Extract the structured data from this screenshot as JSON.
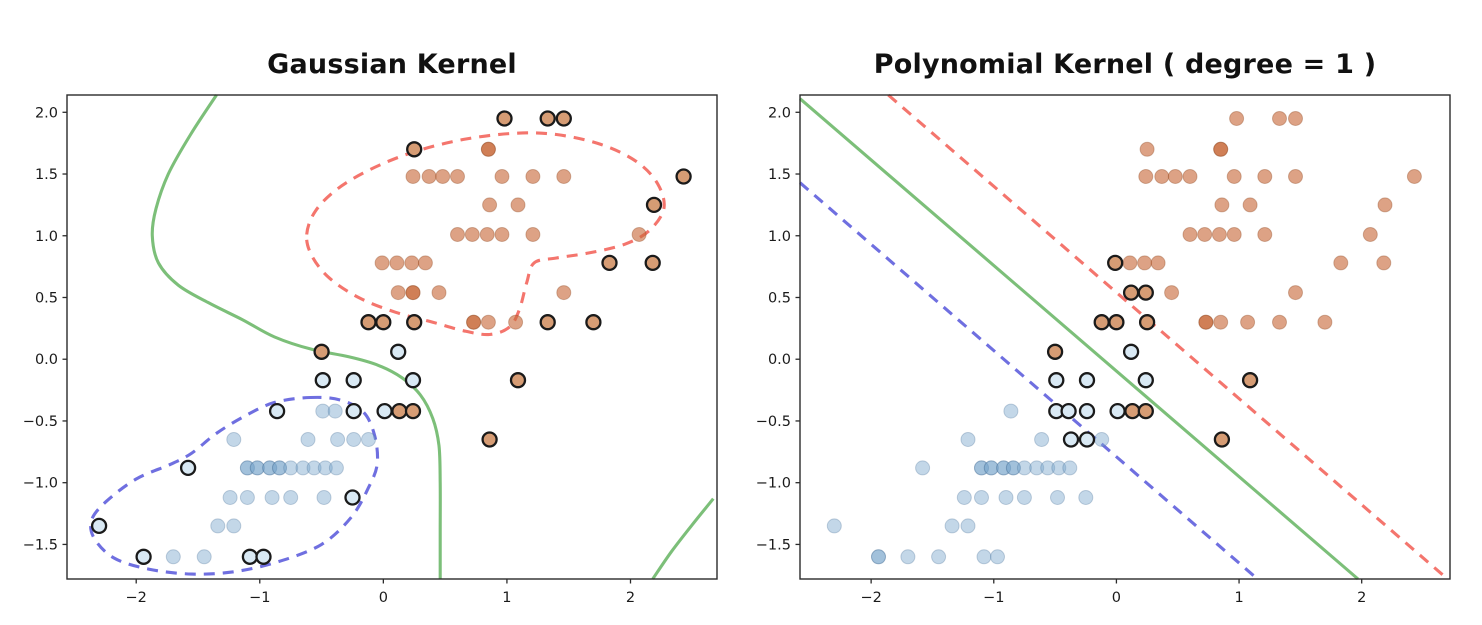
{
  "figure": {
    "background": "#ffffff"
  },
  "colors": {
    "orange_fill": "#c8693a",
    "orange_opacity": 0.62,
    "orange_sv_fill": "#d69c74",
    "blue_fill": "#79a7cb",
    "blue_opacity": 0.45,
    "blue_sv_fill": "#d9e9f4",
    "sv_edge": "#1a1a1a",
    "green_line": "#7cbf79",
    "red_line": "#f4756d",
    "blue_line": "#6f6fe0",
    "spine": "#2b2b2b",
    "tick_text": "#1a1a1a"
  },
  "chart_data": {
    "type": "scatter",
    "description": "SVM decision boundaries: solid green = decision boundary, dashed red/blue = class margin contours, black-ringed points = support vectors",
    "points": {
      "orange": [
        [
          0.98,
          1.95,
          0
        ],
        [
          1.33,
          1.95,
          0
        ],
        [
          1.46,
          1.95,
          0
        ],
        [
          0.25,
          1.7,
          0
        ],
        [
          0.85,
          1.7,
          1
        ],
        [
          0.24,
          1.48,
          0
        ],
        [
          0.37,
          1.48,
          0
        ],
        [
          0.48,
          1.48,
          0
        ],
        [
          0.6,
          1.48,
          0
        ],
        [
          0.96,
          1.48,
          0
        ],
        [
          1.21,
          1.48,
          0
        ],
        [
          1.46,
          1.48,
          0
        ],
        [
          2.43,
          1.48,
          0
        ],
        [
          0.86,
          1.25,
          0
        ],
        [
          1.09,
          1.25,
          0
        ],
        [
          2.19,
          1.25,
          0
        ],
        [
          0.6,
          1.01,
          0
        ],
        [
          0.72,
          1.01,
          0
        ],
        [
          0.84,
          1.01,
          0
        ],
        [
          0.96,
          1.01,
          0
        ],
        [
          1.21,
          1.01,
          0
        ],
        [
          2.07,
          1.01,
          0
        ],
        [
          -0.01,
          0.78,
          0
        ],
        [
          0.11,
          0.78,
          0
        ],
        [
          0.23,
          0.78,
          0
        ],
        [
          0.34,
          0.78,
          0
        ],
        [
          1.83,
          0.78,
          0
        ],
        [
          2.18,
          0.78,
          0
        ],
        [
          0.12,
          0.54,
          0
        ],
        [
          0.24,
          0.54,
          1
        ],
        [
          0.45,
          0.54,
          0
        ],
        [
          1.46,
          0.54,
          0
        ],
        [
          -0.12,
          0.3,
          1
        ],
        [
          0.0,
          0.3,
          1
        ],
        [
          0.25,
          0.3,
          0
        ],
        [
          0.73,
          0.3,
          1
        ],
        [
          0.85,
          0.3,
          0
        ],
        [
          1.07,
          0.3,
          0
        ],
        [
          1.33,
          0.3,
          0
        ],
        [
          1.7,
          0.3,
          0
        ],
        [
          -0.5,
          0.06,
          0
        ],
        [
          1.09,
          -0.17,
          0
        ],
        [
          0.13,
          -0.42,
          0
        ],
        [
          0.24,
          -0.42,
          0
        ],
        [
          0.86,
          -0.65,
          0
        ]
      ],
      "blue": [
        [
          0.12,
          0.06,
          0
        ],
        [
          -0.49,
          -0.17,
          0
        ],
        [
          -0.24,
          -0.17,
          0
        ],
        [
          0.24,
          -0.17,
          0
        ],
        [
          -0.86,
          -0.42,
          0
        ],
        [
          -0.49,
          -0.42,
          0
        ],
        [
          -0.39,
          -0.42,
          0
        ],
        [
          -0.24,
          -0.42,
          0
        ],
        [
          0.01,
          -0.42,
          0
        ],
        [
          -1.21,
          -0.65,
          0
        ],
        [
          -0.61,
          -0.65,
          0
        ],
        [
          -0.37,
          -0.65,
          0
        ],
        [
          -0.24,
          -0.65,
          0
        ],
        [
          -0.12,
          -0.65,
          0
        ],
        [
          -1.58,
          -0.88,
          0
        ],
        [
          -1.1,
          -0.88,
          1
        ],
        [
          -1.02,
          -0.88,
          1
        ],
        [
          -0.92,
          -0.88,
          1
        ],
        [
          -0.84,
          -0.88,
          1
        ],
        [
          -0.75,
          -0.88,
          0
        ],
        [
          -0.65,
          -0.88,
          0
        ],
        [
          -0.56,
          -0.88,
          0
        ],
        [
          -0.47,
          -0.88,
          0
        ],
        [
          -0.38,
          -0.88,
          0
        ],
        [
          -1.24,
          -1.12,
          0
        ],
        [
          -1.1,
          -1.12,
          0
        ],
        [
          -0.9,
          -1.12,
          0
        ],
        [
          -0.75,
          -1.12,
          0
        ],
        [
          -0.48,
          -1.12,
          0
        ],
        [
          -0.25,
          -1.12,
          0
        ],
        [
          -2.3,
          -1.35,
          0
        ],
        [
          -1.34,
          -1.35,
          0
        ],
        [
          -1.21,
          -1.35,
          0
        ],
        [
          -1.94,
          -1.6,
          1
        ],
        [
          -1.7,
          -1.6,
          0
        ],
        [
          -1.45,
          -1.6,
          0
        ],
        [
          -1.08,
          -1.6,
          0
        ],
        [
          -0.97,
          -1.6,
          0
        ]
      ]
    },
    "panels": [
      {
        "title": "Gaussian Kernel",
        "xlim": [
          -2.56,
          2.7
        ],
        "ylim": [
          -1.78,
          2.14
        ],
        "xticks": [
          "−2",
          "−1",
          "0",
          "1",
          "2"
        ],
        "xtick_values": [
          -2,
          -1,
          0,
          1,
          2
        ],
        "yticks": [
          "2.0",
          "1.5",
          "1.0",
          "0.5",
          "0.0",
          "−0.5",
          "−1.0",
          "−1.5"
        ],
        "ytick_values": [
          2.0,
          1.5,
          1.0,
          0.5,
          0.0,
          -0.5,
          -1.0,
          -1.5
        ],
        "boundaries": [
          {
            "name": "decision-boundary",
            "color": "green",
            "style": "solid",
            "closed": false,
            "points": [
              [
                -1.35,
                2.14
              ],
              [
                -1.56,
                1.82
              ],
              [
                -1.74,
                1.5
              ],
              [
                -1.84,
                1.22
              ],
              [
                -1.87,
                1.0
              ],
              [
                -1.82,
                0.78
              ],
              [
                -1.66,
                0.6
              ],
              [
                -1.42,
                0.46
              ],
              [
                -1.14,
                0.32
              ],
              [
                -0.88,
                0.18
              ],
              [
                -0.58,
                0.08
              ],
              [
                -0.28,
                0.02
              ],
              [
                -0.04,
                -0.05
              ],
              [
                0.15,
                -0.15
              ],
              [
                0.3,
                -0.29
              ],
              [
                0.4,
                -0.48
              ],
              [
                0.45,
                -0.7
              ],
              [
                0.46,
                -1.0
              ],
              [
                0.46,
                -1.4
              ],
              [
                0.46,
                -1.78
              ]
            ]
          },
          {
            "name": "decision-boundary-corner",
            "color": "green",
            "style": "solid",
            "closed": false,
            "points": [
              [
                2.18,
                -1.78
              ],
              [
                2.33,
                -1.56
              ],
              [
                2.5,
                -1.34
              ],
              [
                2.67,
                -1.13
              ]
            ]
          },
          {
            "name": "orange-margin-contour",
            "color": "red",
            "style": "dashed",
            "closed": true,
            "points": [
              [
                -0.62,
                1.01
              ],
              [
                -0.55,
                1.2
              ],
              [
                -0.37,
                1.38
              ],
              [
                -0.1,
                1.54
              ],
              [
                0.25,
                1.68
              ],
              [
                0.65,
                1.78
              ],
              [
                1.06,
                1.83
              ],
              [
                1.4,
                1.82
              ],
              [
                1.76,
                1.74
              ],
              [
                2.05,
                1.6
              ],
              [
                2.22,
                1.42
              ],
              [
                2.27,
                1.22
              ],
              [
                2.15,
                1.04
              ],
              [
                1.95,
                0.93
              ],
              [
                1.66,
                0.86
              ],
              [
                1.4,
                0.82
              ],
              [
                1.22,
                0.78
              ],
              [
                1.16,
                0.62
              ],
              [
                1.1,
                0.4
              ],
              [
                1.02,
                0.26
              ],
              [
                0.86,
                0.2
              ],
              [
                0.65,
                0.23
              ],
              [
                0.4,
                0.3
              ],
              [
                0.1,
                0.38
              ],
              [
                -0.2,
                0.5
              ],
              [
                -0.44,
                0.66
              ],
              [
                -0.58,
                0.84
              ]
            ]
          },
          {
            "name": "blue-margin-contour",
            "color": "blue",
            "style": "dashed",
            "closed": true,
            "points": [
              [
                -0.59,
                -0.31
              ],
              [
                -0.35,
                -0.33
              ],
              [
                -0.16,
                -0.43
              ],
              [
                -0.07,
                -0.62
              ],
              [
                -0.05,
                -0.85
              ],
              [
                -0.12,
                -1.04
              ],
              [
                -0.26,
                -1.28
              ],
              [
                -0.5,
                -1.5
              ],
              [
                -0.85,
                -1.64
              ],
              [
                -1.2,
                -1.72
              ],
              [
                -1.55,
                -1.74
              ],
              [
                -1.9,
                -1.7
              ],
              [
                -2.18,
                -1.61
              ],
              [
                -2.34,
                -1.45
              ],
              [
                -2.36,
                -1.3
              ],
              [
                -2.24,
                -1.15
              ],
              [
                -2.0,
                -0.97
              ],
              [
                -1.72,
                -0.85
              ],
              [
                -1.55,
                -0.76
              ],
              [
                -1.35,
                -0.6
              ],
              [
                -1.12,
                -0.46
              ],
              [
                -0.88,
                -0.35
              ]
            ]
          }
        ],
        "support_vectors": {
          "orange": [
            [
              0.98,
              1.95
            ],
            [
              1.33,
              1.95
            ],
            [
              1.46,
              1.95
            ],
            [
              0.25,
              1.7
            ],
            [
              2.43,
              1.48
            ],
            [
              2.19,
              1.25
            ],
            [
              1.83,
              0.78
            ],
            [
              2.18,
              0.78
            ],
            [
              -0.12,
              0.3
            ],
            [
              0.0,
              0.3
            ],
            [
              0.25,
              0.3
            ],
            [
              1.33,
              0.3
            ],
            [
              1.7,
              0.3
            ],
            [
              -0.5,
              0.06
            ],
            [
              1.09,
              -0.17
            ],
            [
              0.13,
              -0.42
            ],
            [
              0.24,
              -0.42
            ],
            [
              0.86,
              -0.65
            ]
          ],
          "blue": [
            [
              0.12,
              0.06
            ],
            [
              -0.49,
              -0.17
            ],
            [
              -0.24,
              -0.17
            ],
            [
              0.24,
              -0.17
            ],
            [
              -0.86,
              -0.42
            ],
            [
              -0.24,
              -0.42
            ],
            [
              0.01,
              -0.42
            ],
            [
              -1.58,
              -0.88
            ],
            [
              -0.25,
              -1.12
            ],
            [
              -2.3,
              -1.35
            ],
            [
              -1.94,
              -1.6
            ],
            [
              -1.08,
              -1.6
            ],
            [
              -0.97,
              -1.6
            ]
          ]
        }
      },
      {
        "title": "Polynomial Kernel ( degree = 1 )",
        "xlim": [
          -2.58,
          2.72
        ],
        "ylim": [
          -1.78,
          2.14
        ],
        "xticks": [
          "−2",
          "−1",
          "0",
          "1",
          "2"
        ],
        "xtick_values": [
          -2,
          -1,
          0,
          1,
          2
        ],
        "yticks": [
          "2.0",
          "1.5",
          "1.0",
          "0.5",
          "0.0",
          "−0.5",
          "−1.0",
          "−1.5"
        ],
        "ytick_values": [
          2.0,
          1.5,
          1.0,
          0.5,
          0.0,
          -0.5,
          -1.0,
          -1.5
        ],
        "boundaries": [
          {
            "name": "orange-margin-line",
            "color": "red",
            "style": "dashed",
            "closed": false,
            "points": [
              [
                -1.86,
                2.14
              ],
              [
                2.7,
                -1.78
              ]
            ]
          },
          {
            "name": "decision-boundary",
            "color": "green",
            "style": "solid",
            "closed": false,
            "points": [
              [
                -2.58,
                2.11
              ],
              [
                1.97,
                -1.78
              ]
            ]
          },
          {
            "name": "blue-margin-line",
            "color": "blue",
            "style": "dashed",
            "closed": false,
            "points": [
              [
                -2.58,
                1.43
              ],
              [
                1.15,
                -1.78
              ]
            ]
          }
        ],
        "support_vectors": {
          "orange": [
            [
              -0.5,
              0.06
            ],
            [
              -0.01,
              0.78
            ],
            [
              0.12,
              0.54
            ],
            [
              0.24,
              0.54
            ],
            [
              -0.12,
              0.3
            ],
            [
              0.0,
              0.3
            ],
            [
              0.25,
              0.3
            ],
            [
              0.13,
              -0.42
            ],
            [
              0.24,
              -0.42
            ],
            [
              1.09,
              -0.17
            ],
            [
              0.86,
              -0.65
            ]
          ],
          "blue": [
            [
              0.12,
              0.06
            ],
            [
              -0.49,
              -0.17
            ],
            [
              -0.24,
              -0.17
            ],
            [
              0.24,
              -0.17
            ],
            [
              -0.49,
              -0.42
            ],
            [
              -0.39,
              -0.42
            ],
            [
              -0.24,
              -0.42
            ],
            [
              0.01,
              -0.42
            ],
            [
              -0.37,
              -0.65
            ],
            [
              -0.24,
              -0.65
            ]
          ]
        }
      }
    ]
  }
}
